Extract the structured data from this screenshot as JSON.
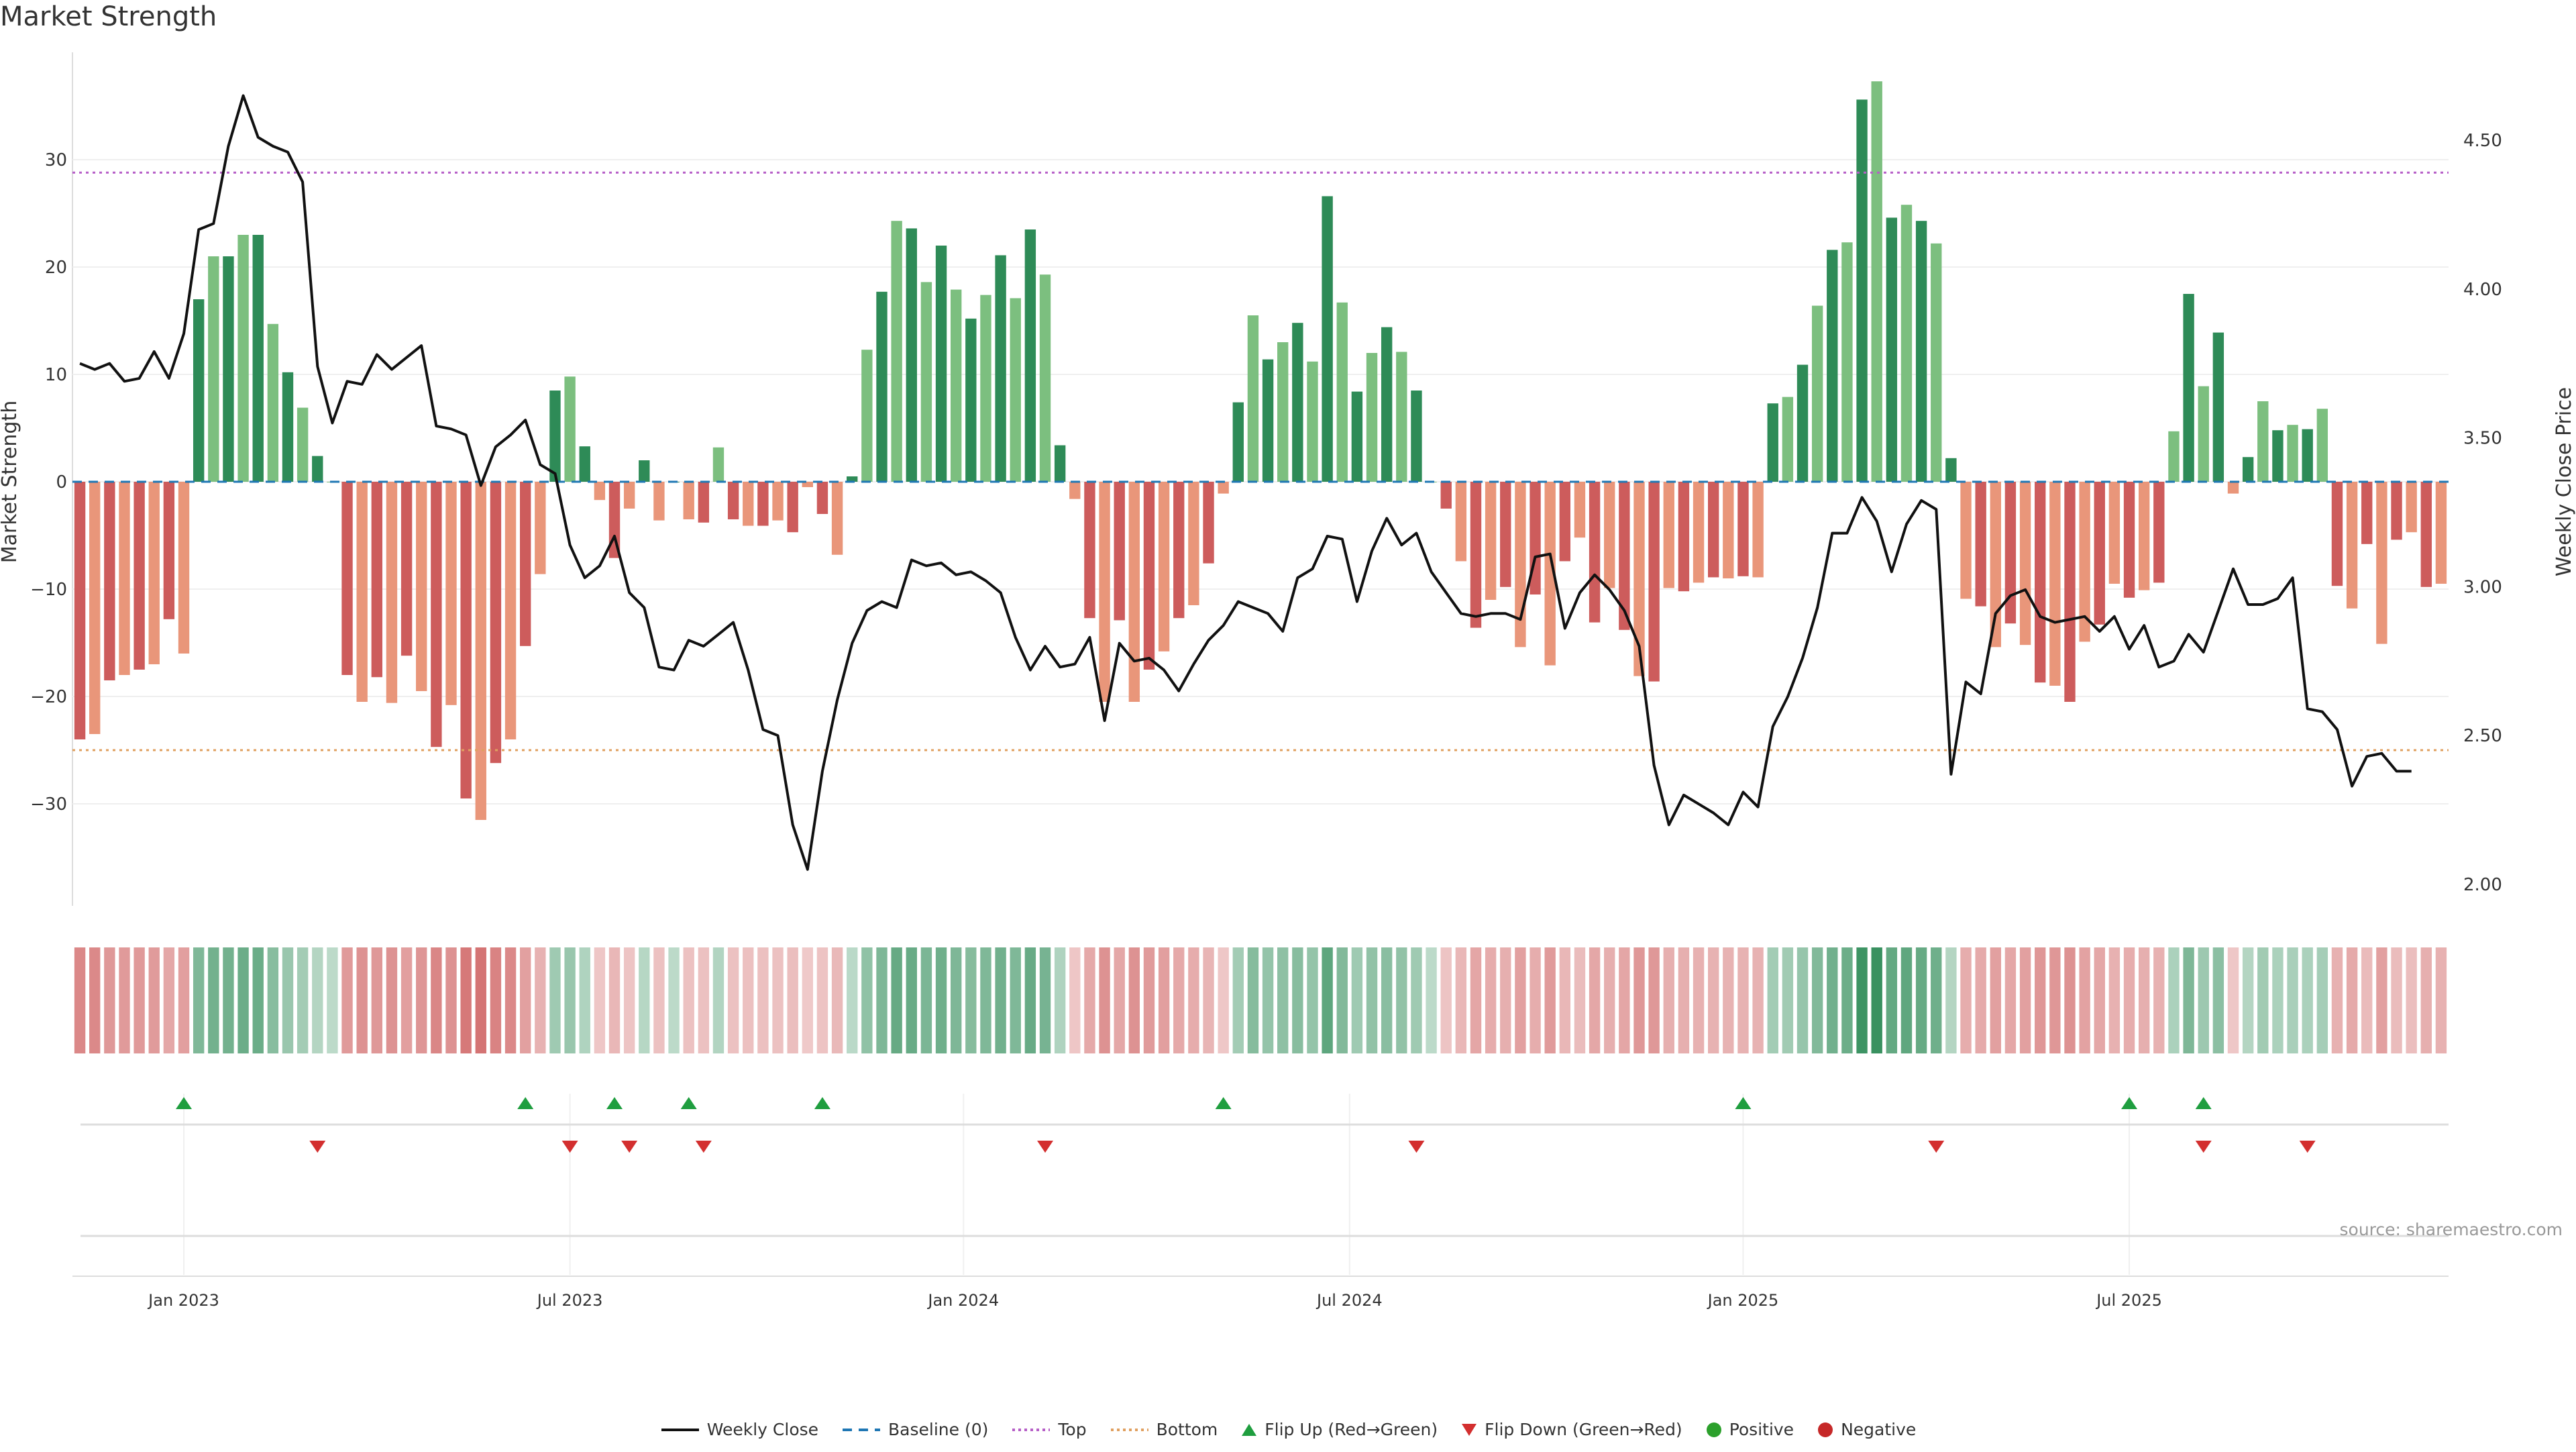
{
  "title": "Market Strength",
  "source": "source: sharemaestro.com",
  "colors": {
    "positive_dark": "#2e8b57",
    "positive_light": "#7cbf7f",
    "negative_dark": "#cd5c5c",
    "negative_light": "#e9967a",
    "close_line": "#111111",
    "baseline": "#1f77b4",
    "top": "#b65fc7",
    "bottom": "#e0a060",
    "flip_up": "#1f9e3f",
    "flip_down": "#d32f2f",
    "positive_dot": "#2ca02c",
    "negative_dot": "#c62828"
  },
  "legend": [
    {
      "label": "Weekly Close",
      "icon": "solid-line",
      "color": "#111111"
    },
    {
      "label": "Baseline (0)",
      "icon": "dashed-line",
      "color": "#1f77b4"
    },
    {
      "label": "Top",
      "icon": "dotted-line",
      "color": "#b65fc7"
    },
    {
      "label": "Bottom",
      "icon": "dotted-line",
      "color": "#e0a060"
    },
    {
      "label": "Flip Up (Red→Green)",
      "icon": "triangle-up",
      "color": "#1f9e3f"
    },
    {
      "label": "Flip Down (Green→Red)",
      "icon": "triangle-down",
      "color": "#d32f2f"
    },
    {
      "label": "Positive",
      "icon": "circle",
      "color": "#2ca02c"
    },
    {
      "label": "Negative",
      "icon": "circle",
      "color": "#c62828"
    }
  ],
  "chart_data": {
    "type": "bar",
    "title": "Market Strength",
    "ylabel_left": "Market Strength",
    "ylabel_right": "Weekly Close Price",
    "ylim_left": [
      -40,
      38
    ],
    "ylim_right": [
      1.92,
      4.76
    ],
    "yticks_left": [
      "30",
      "20",
      "10",
      "0",
      "−10",
      "−20",
      "−30"
    ],
    "yticks_left_values": [
      30,
      20,
      10,
      0,
      -10,
      -20,
      -30
    ],
    "yticks_right": [
      "4.50",
      "4.00",
      "3.50",
      "3.00",
      "2.50",
      "2.00"
    ],
    "yticks_right_values": [
      4.5,
      4.0,
      3.5,
      3.0,
      2.5,
      2.0
    ],
    "x_ticks": [
      "Jan 2023",
      "Jul 2023",
      "Jan 2024",
      "Jul 2024",
      "Jan 2025",
      "Jul 2025"
    ],
    "x_tick_weeks": [
      7.5,
      33.5,
      60.0,
      86.0,
      112.5,
      138.5
    ],
    "reference_lines": {
      "top": 28.8,
      "bottom": -25,
      "baseline": 0
    },
    "grid": true,
    "legend_position": "bottom-center",
    "strength": [
      -24,
      -23.5,
      -18.5,
      -18,
      -17.5,
      -17,
      -12.8,
      -16,
      17,
      21,
      21,
      23,
      23,
      14.7,
      10.2,
      6.9,
      2.4,
      0,
      -18,
      -20.5,
      -18.2,
      -20.6,
      -16.2,
      -19.5,
      -24.7,
      -20.8,
      -29.5,
      -31.5,
      -26.2,
      -24,
      -15.3,
      -8.6,
      8.5,
      9.8,
      3.3,
      -1.7,
      -7.1,
      -2.5,
      2,
      -3.6,
      0,
      -3.5,
      -3.8,
      3.2,
      -3.5,
      -4.1,
      -4.1,
      -3.6,
      -4.7,
      -0.5,
      -3,
      -6.8,
      0.5,
      12.3,
      17.7,
      24.3,
      23.6,
      18.6,
      22,
      17.9,
      15.2,
      17.4,
      21.1,
      17.1,
      23.5,
      19.3,
      3.4,
      -1.6,
      -12.7,
      -20.5,
      -12.9,
      -20.5,
      -17.5,
      -15.8,
      -12.7,
      -11.5,
      -7.6,
      -1.1,
      7.4,
      15.5,
      11.4,
      13,
      14.8,
      11.2,
      26.6,
      16.7,
      8.4,
      12,
      14.4,
      12.1,
      8.5,
      0,
      -2.5,
      -7.4,
      -13.6,
      -11,
      -9.8,
      -15.4,
      -10.5,
      -17.1,
      -7.4,
      -5.2,
      -13.1,
      -9.9,
      -13.8,
      -18.1,
      -18.6,
      -9.9,
      -10.2,
      -9.4,
      -8.9,
      -9,
      -8.8,
      -8.9,
      7.3,
      7.9,
      10.9,
      16.4,
      21.6,
      22.3,
      35.6,
      37.3,
      24.6,
      25.8,
      24.3,
      22.2,
      2.2,
      -10.9,
      -11.6,
      -15.4,
      -13.2,
      -15.2,
      -18.7,
      -19,
      -20.5,
      -14.9,
      -13.3,
      -9.5,
      -10.8,
      -10.1,
      -9.4,
      4.7,
      17.5,
      8.9,
      13.9,
      -1.1,
      2.3,
      7.5,
      4.8,
      5.3,
      4.9,
      6.8,
      -9.7,
      -11.8,
      -5.8,
      -15.1,
      -5.4,
      -4.7,
      -9.8,
      -9.5
    ],
    "weekly_close": [
      3.75,
      3.73,
      3.75,
      3.69,
      3.7,
      3.79,
      3.7,
      3.85,
      4.2,
      4.22,
      4.48,
      4.65,
      4.51,
      4.48,
      4.46,
      4.36,
      3.74,
      3.55,
      3.69,
      3.68,
      3.78,
      3.73,
      3.77,
      3.81,
      3.54,
      3.53,
      3.51,
      3.34,
      3.47,
      3.51,
      3.56,
      3.41,
      3.38,
      3.14,
      3.03,
      3.07,
      3.17,
      2.98,
      2.93,
      2.73,
      2.72,
      2.82,
      2.8,
      2.84,
      2.88,
      2.72,
      2.52,
      2.5,
      2.2,
      2.05,
      2.38,
      2.62,
      2.81,
      2.92,
      2.95,
      2.93,
      3.09,
      3.07,
      3.08,
      3.04,
      3.05,
      3.02,
      2.98,
      2.83,
      2.72,
      2.8,
      2.73,
      2.74,
      2.83,
      2.55,
      2.81,
      2.75,
      2.76,
      2.72,
      2.65,
      2.74,
      2.82,
      2.87,
      2.95,
      2.93,
      2.91,
      2.85,
      3.03,
      3.06,
      3.17,
      3.16,
      2.95,
      3.12,
      3.23,
      3.14,
      3.18,
      3.05,
      2.98,
      2.91,
      2.9,
      2.91,
      2.91,
      2.89,
      3.1,
      3.11,
      2.86,
      2.98,
      3.04,
      2.99,
      2.92,
      2.8,
      2.4,
      2.2,
      2.3,
      2.27,
      2.24,
      2.2,
      2.31,
      2.26,
      2.53,
      2.63,
      2.76,
      2.93,
      3.18,
      3.18,
      3.3,
      3.22,
      3.05,
      3.21,
      3.29,
      3.26,
      2.37,
      2.68,
      2.64,
      2.91,
      2.97,
      2.99,
      2.9,
      2.88,
      2.89,
      2.9,
      2.85,
      2.9,
      2.79,
      2.87,
      2.73,
      2.75,
      2.84,
      2.78,
      2.92,
      3.06,
      2.94,
      2.94,
      2.96,
      3.03,
      2.59,
      2.58,
      2.52,
      2.33,
      2.43,
      2.44,
      2.38,
      2.38
    ]
  },
  "flips": {
    "up_weeks": [
      7.5,
      30.5,
      36.5,
      41.5,
      50.5,
      77.5,
      112.5,
      138.5,
      143.5
    ],
    "down_weeks": [
      16.5,
      33.5,
      37.5,
      42.5,
      65.5,
      90.5,
      125.5,
      143.5,
      150.5
    ]
  }
}
